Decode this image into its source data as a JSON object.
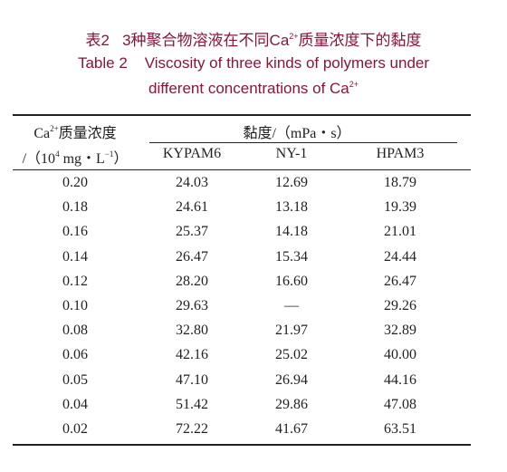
{
  "caption": {
    "zh": [
      "表2",
      "3种聚合物溶液在不同Ca",
      "2+",
      "质量浓度下的黏度"
    ],
    "en": [
      "Table 2",
      "Viscosity of three kinds of polymers under",
      "different concentrations of Ca",
      "2+"
    ]
  },
  "table": {
    "header": {
      "first_column": [
        "Ca",
        "2+",
        "质量浓度",
        "/（10",
        "4",
        " mg・L",
        "−1",
        "）"
      ],
      "group": "黏度/（mPa・s）",
      "columns": [
        "KYPAM6",
        "NY-1",
        "HPAM3"
      ]
    },
    "rows": [
      [
        "0.20",
        "24.03",
        "12.69",
        "18.79"
      ],
      [
        "0.18",
        "24.61",
        "13.18",
        "19.39"
      ],
      [
        "0.16",
        "25.37",
        "14.18",
        "21.01"
      ],
      [
        "0.14",
        "26.47",
        "15.34",
        "24.44"
      ],
      [
        "0.12",
        "28.20",
        "16.60",
        "26.47"
      ],
      [
        "0.10",
        "29.63",
        "—",
        "29.26"
      ],
      [
        "0.08",
        "32.80",
        "21.97",
        "32.89"
      ],
      [
        "0.06",
        "42.16",
        "25.02",
        "40.00"
      ],
      [
        "0.05",
        "47.10",
        "26.94",
        "44.16"
      ],
      [
        "0.04",
        "51.42",
        "29.86",
        "47.08"
      ],
      [
        "0.02",
        "72.22",
        "41.67",
        "63.51"
      ]
    ]
  }
}
